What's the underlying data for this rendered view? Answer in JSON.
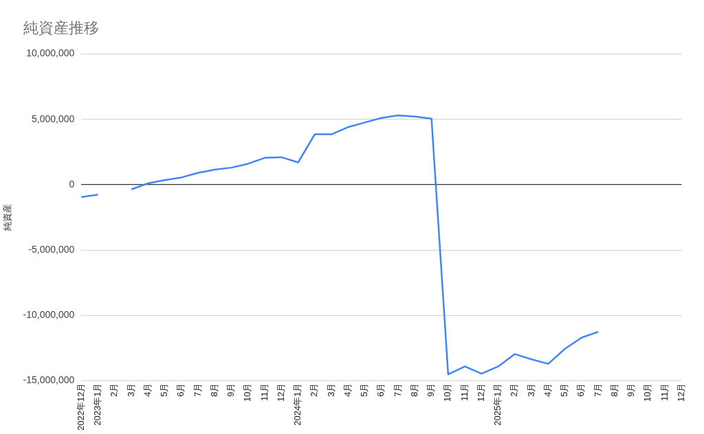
{
  "chart_data": {
    "type": "line",
    "title": "純資産推移",
    "ylabel": "純資産",
    "categories": [
      "2022年12月",
      "2023年1月",
      "2月",
      "3月",
      "4月",
      "5月",
      "6月",
      "7月",
      "8月",
      "9月",
      "10月",
      "11月",
      "12月",
      "2024年1月",
      "2月",
      "3月",
      "4月",
      "5月",
      "6月",
      "7月",
      "8月",
      "9月",
      "10月",
      "11月",
      "12月",
      "2025年1月",
      "2月",
      "3月",
      "4月",
      "5月",
      "6月",
      "7月",
      "8月",
      "9月",
      "10月",
      "11月",
      "12月"
    ],
    "series": [
      {
        "color": "#4285f4",
        "values": [
          -950000,
          -770000,
          null,
          -360000,
          100000,
          350000,
          550000,
          900000,
          1150000,
          1300000,
          1600000,
          2050000,
          2100000,
          1700000,
          3850000,
          3850000,
          4400000,
          4750000,
          5100000,
          5300000,
          5200000,
          5050000,
          -14500000,
          -13900000,
          -14450000,
          -13900000,
          -12950000,
          -13350000,
          -13700000,
          -12550000,
          -11700000,
          -11250000,
          null,
          null,
          null,
          null,
          null
        ]
      }
    ],
    "ylim": [
      -15000000,
      10000000
    ],
    "yticks": [
      {
        "value": -15000000,
        "label": "-15,000,000"
      },
      {
        "value": -10000000,
        "label": "-10,000,000"
      },
      {
        "value": -5000000,
        "label": "-5,000,000"
      },
      {
        "value": 0,
        "label": "0"
      },
      {
        "value": 5000000,
        "label": "5,000,000"
      },
      {
        "value": 10000000,
        "label": "10,000,000"
      }
    ],
    "grid": "y",
    "legend": false,
    "marker": "none",
    "line_style": "solid"
  }
}
